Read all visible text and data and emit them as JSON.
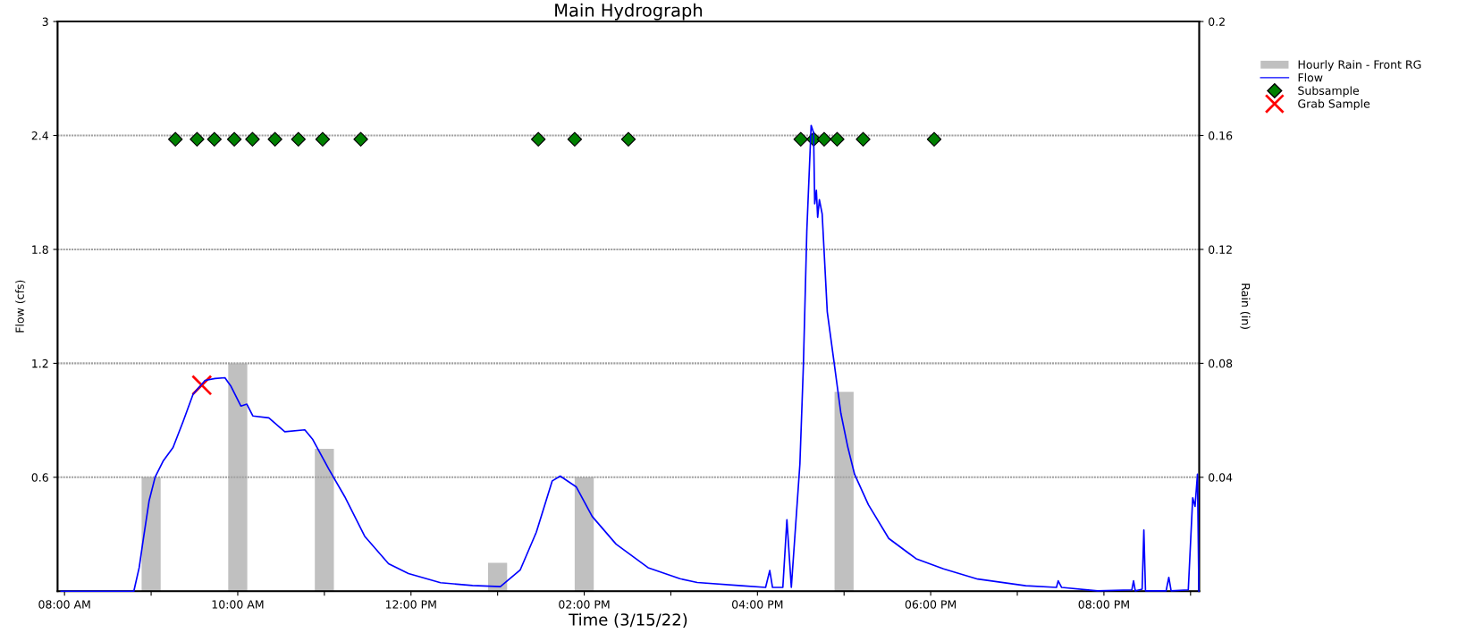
{
  "chart_data": {
    "type": "line",
    "title": "Main Hydrograph",
    "xlabel": "Time (3/15/22)",
    "ylabel": "Flow (cfs)",
    "y2label": "Rain (in)",
    "xlim": [
      7.92,
      21.1
    ],
    "xticks": [
      {
        "value": 8,
        "label": "08:00 AM"
      },
      {
        "value": 9,
        "label": null
      },
      {
        "value": 10,
        "label": "10:00 AM"
      },
      {
        "value": 11,
        "label": null
      },
      {
        "value": 12,
        "label": "12:00 PM"
      },
      {
        "value": 13,
        "label": null
      },
      {
        "value": 14,
        "label": "02:00 PM"
      },
      {
        "value": 15,
        "label": null
      },
      {
        "value": 16,
        "label": "04:00 PM"
      },
      {
        "value": 17,
        "label": null
      },
      {
        "value": 18,
        "label": "06:00 PM"
      },
      {
        "value": 19,
        "label": null
      },
      {
        "value": 20,
        "label": "08:00 PM"
      },
      {
        "value": 21,
        "label": null
      }
    ],
    "ylim": [
      0,
      3
    ],
    "yticks": [
      0.6,
      1.2,
      1.8,
      2.4,
      3
    ],
    "y2lim": [
      0,
      0.2
    ],
    "y2ticks": [
      0.04,
      0.08,
      0.12,
      0.16,
      0.2
    ],
    "grid": "y",
    "legend": "top right",
    "series": [
      {
        "name": "Hourly Rain - Front RG",
        "type": "bar",
        "axis": "y2",
        "color": "#c0c0c0",
        "x": [
          9,
          10,
          11,
          13,
          14,
          17
        ],
        "values": [
          0.04,
          0.08,
          0.05,
          0.01,
          0.04,
          0.07
        ]
      },
      {
        "name": "Flow",
        "color": "#0000ff",
        "marker": "none",
        "line_style": "solid",
        "x": [
          7.96,
          8.8,
          8.862,
          8.908,
          8.977,
          9.046,
          9.138,
          9.253,
          9.368,
          9.484,
          9.622,
          9.737,
          9.852,
          9.922,
          10.036,
          10.105,
          10.174,
          10.359,
          10.543,
          10.774,
          10.866,
          11.051,
          11.235,
          11.465,
          11.741,
          11.971,
          12.341,
          12.71,
          13.032,
          13.262,
          13.447,
          13.631,
          13.723,
          13.907,
          14.092,
          14.368,
          14.737,
          15.105,
          15.305,
          15.818,
          16.094,
          16.142,
          16.174,
          16.293,
          16.34,
          16.391,
          16.49,
          16.53,
          16.57,
          16.62,
          16.648,
          16.661,
          16.68,
          16.695,
          16.715,
          16.747,
          16.806,
          16.885,
          16.963,
          17.043,
          17.121,
          17.28,
          17.516,
          17.832,
          18.148,
          18.543,
          19.097,
          19.452,
          19.472,
          19.512,
          19.927,
          20.322,
          20.342,
          20.362,
          20.441,
          20.461,
          20.48,
          20.718,
          20.749,
          20.776,
          20.974,
          21.025,
          21.052,
          21.08,
          21.096
        ],
        "values": [
          0,
          0,
          0.124,
          0.269,
          0.477,
          0.601,
          0.685,
          0.757,
          0.892,
          1.037,
          1.11,
          1.12,
          1.124,
          1.079,
          0.975,
          0.985,
          0.923,
          0.913,
          0.84,
          0.85,
          0.799,
          0.643,
          0.498,
          0.29,
          0.145,
          0.093,
          0.045,
          0.03,
          0.024,
          0.113,
          0.311,
          0.581,
          0.606,
          0.55,
          0.394,
          0.248,
          0.124,
          0.066,
          0.046,
          0.029,
          0.02,
          0.109,
          0.02,
          0.02,
          0.376,
          0.02,
          0.67,
          1.186,
          1.898,
          2.453,
          2.414,
          2.04,
          2.111,
          1.969,
          2.062,
          1.987,
          1.471,
          1.204,
          0.937,
          0.759,
          0.616,
          0.456,
          0.278,
          0.171,
          0.118,
          0.064,
          0.029,
          0.02,
          0.055,
          0.02,
          0.002,
          0.007,
          0.055,
          0.002,
          0.011,
          0.322,
          0.002,
          0.002,
          0.073,
          0.002,
          0.007,
          0.492,
          0.447,
          0.616,
          0
        ]
      },
      {
        "name": "Subsample",
        "type": "scatter",
        "color": "#008000",
        "marker": "diamond",
        "x": [
          9.28,
          9.53,
          9.73,
          9.96,
          10.17,
          10.43,
          10.7,
          10.98,
          11.42,
          13.47,
          13.89,
          14.51,
          16.5,
          16.65,
          16.77,
          16.92,
          17.22,
          18.04
        ],
        "values": [
          2.38,
          2.38,
          2.38,
          2.38,
          2.38,
          2.38,
          2.38,
          2.38,
          2.38,
          2.38,
          2.38,
          2.38,
          2.38,
          2.38,
          2.38,
          2.38,
          2.38,
          2.38
        ]
      },
      {
        "name": "Grab Sample",
        "type": "scatter",
        "color": "#ff0000",
        "marker": "cross",
        "x": [
          9.585
        ],
        "values": [
          1.085
        ]
      }
    ]
  }
}
